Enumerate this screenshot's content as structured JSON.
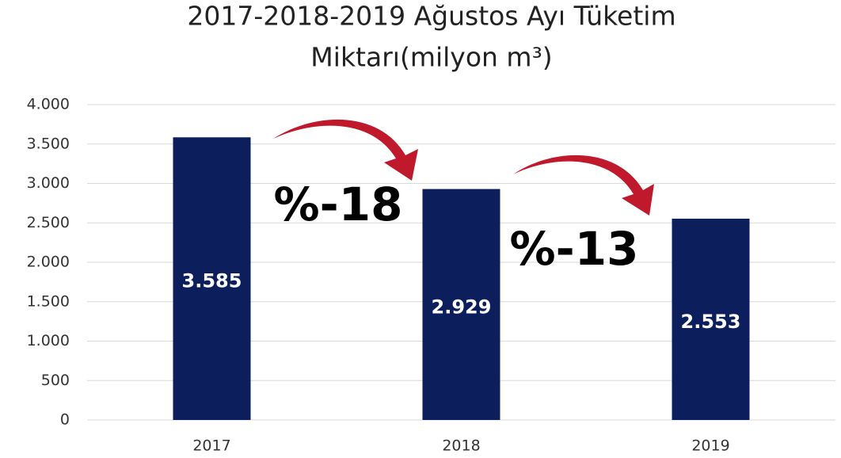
{
  "chart_data": {
    "type": "bar",
    "title": [
      "2017-2018-2019 Ağustos Ayı Tüketim",
      "Miktarı(milyon m³)"
    ],
    "categories": [
      "2017",
      "2018",
      "2019"
    ],
    "values": [
      3585,
      2929,
      2553
    ],
    "value_labels": [
      "3.585",
      "2.929",
      "2.553"
    ],
    "color": "#0c1f5c",
    "ylim": [
      0,
      4000
    ],
    "yticks": [
      0,
      500,
      {
        "value": 1000,
        "label": "1.000"
      },
      {
        "value": 1500,
        "label": "1.500"
      },
      {
        "value": 2000,
        "label": "2.000"
      },
      {
        "value": 2500,
        "label": "2.500"
      },
      {
        "value": 3000,
        "label": "3.000"
      },
      {
        "value": 3500,
        "label": "3.500"
      },
      {
        "value": 4000,
        "label": "4.000"
      }
    ],
    "grid": true,
    "annotations": [
      "%-18",
      "%-13"
    ]
  }
}
